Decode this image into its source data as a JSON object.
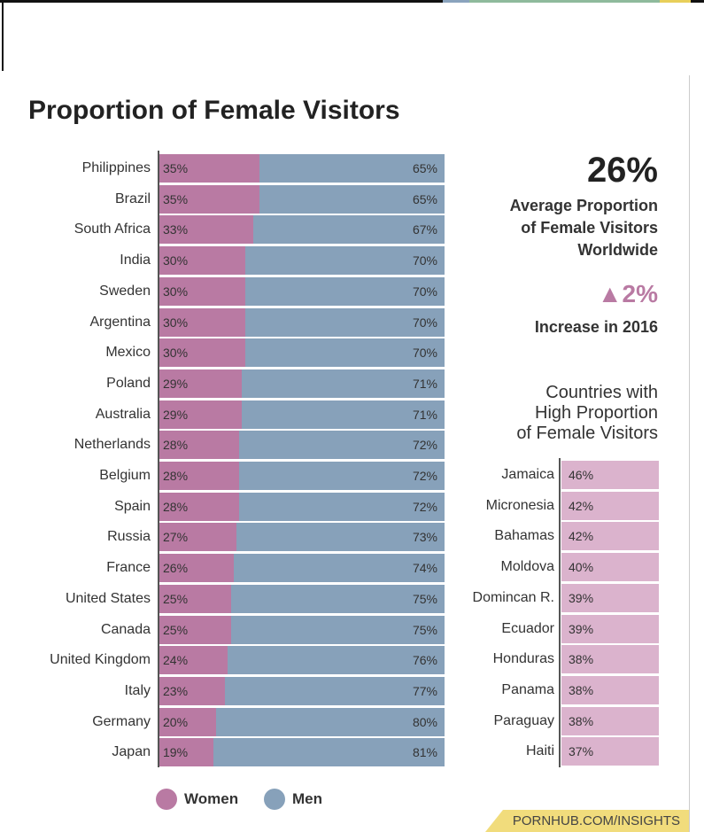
{
  "title": "Proportion of Female Visitors",
  "colors": {
    "women": "#b97aa3",
    "men": "#87a1ba",
    "highlight": "#dbb3cd",
    "footer": "#f1dc7c"
  },
  "stats": {
    "average": "26%",
    "average_label": [
      "Average Proportion",
      "of Female Visitors",
      "Worldwide"
    ],
    "increase": "▲2%",
    "increase_label": "Increase in 2016"
  },
  "side_title": [
    "Countries with",
    "High Proportion",
    "of Female Visitors"
  ],
  "legend": {
    "women": "Women",
    "men": "Men"
  },
  "footer": "PORNHUB.COM/INSIGHTS",
  "chart_data": [
    {
      "type": "bar",
      "orientation": "horizontal",
      "stacked": true,
      "title": "Proportion of Female Visitors",
      "categories": [
        "Philippines",
        "Brazil",
        "South Africa",
        "India",
        "Sweden",
        "Argentina",
        "Mexico",
        "Poland",
        "Australia",
        "Netherlands",
        "Belgium",
        "Spain",
        "Russia",
        "France",
        "United States",
        "Canada",
        "United Kingdom",
        "Italy",
        "Germany",
        "Japan"
      ],
      "series": [
        {
          "name": "Women",
          "values": [
            35,
            35,
            33,
            30,
            30,
            30,
            30,
            29,
            29,
            28,
            28,
            28,
            27,
            26,
            25,
            25,
            24,
            23,
            20,
            19
          ]
        },
        {
          "name": "Men",
          "values": [
            65,
            65,
            67,
            70,
            70,
            70,
            70,
            71,
            71,
            72,
            72,
            72,
            73,
            74,
            75,
            75,
            76,
            77,
            80,
            81
          ]
        }
      ],
      "xlim": [
        0,
        100
      ],
      "legend": "bottom"
    },
    {
      "type": "bar",
      "orientation": "horizontal",
      "title": "Countries with High Proportion of Female Visitors",
      "categories": [
        "Jamaica",
        "Micronesia",
        "Bahamas",
        "Moldova",
        "Domincan R.",
        "Ecuador",
        "Honduras",
        "Panama",
        "Paraguay",
        "Haiti"
      ],
      "values": [
        46,
        42,
        42,
        40,
        39,
        39,
        38,
        38,
        38,
        37
      ]
    }
  ]
}
